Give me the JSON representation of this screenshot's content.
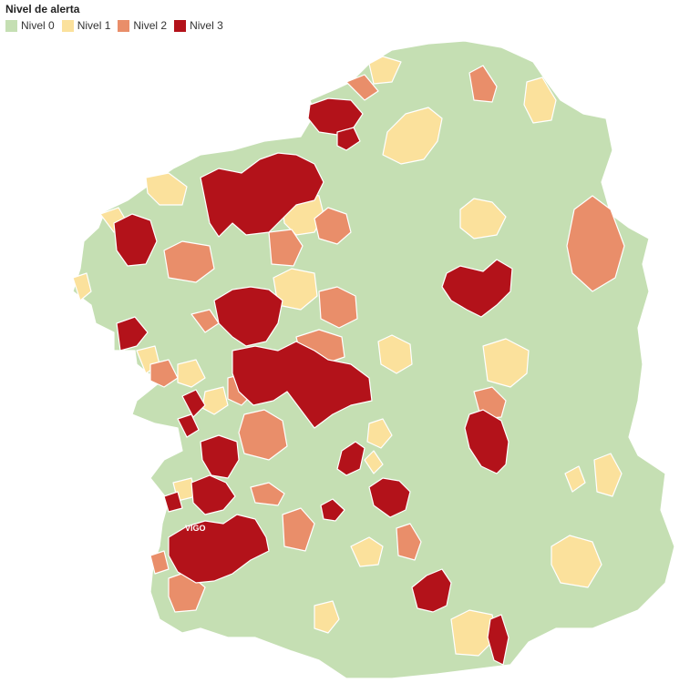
{
  "legend": {
    "title": "Nivel de alerta",
    "items": [
      {
        "label": "Nivel 0",
        "color": "#c5dfb3"
      },
      {
        "label": "Nivel 1",
        "color": "#fbe19c"
      },
      {
        "label": "Nivel 2",
        "color": "#e98e6a"
      },
      {
        "label": "Nivel 3",
        "color": "#b3121a"
      }
    ]
  },
  "map": {
    "city_label": "VIGO",
    "base_color": "#c5dfb3"
  }
}
